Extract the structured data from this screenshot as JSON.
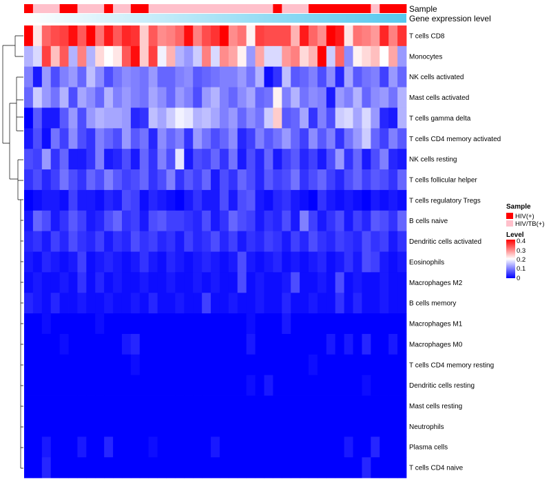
{
  "chart_data": {
    "type": "heatmap",
    "annotations": {
      "sample_label": "Sample",
      "gene_label": "Gene expression level",
      "sample_groups": [
        1,
        2,
        2,
        2,
        1,
        1,
        2,
        2,
        2,
        1,
        2,
        2,
        1,
        1,
        2,
        2,
        2,
        2,
        2,
        2,
        2,
        2,
        2,
        2,
        2,
        2,
        2,
        2,
        1,
        2,
        2,
        2,
        1,
        1,
        1,
        1,
        1,
        1,
        1,
        2,
        1,
        1,
        1
      ]
    },
    "rows": [
      "T cells CD8",
      "Monocytes",
      "NK cells activated",
      "Mast cells activated",
      "T cells gamma delta",
      "T cells CD4 memory activated",
      "NK cells resting",
      "T cells follicular helper",
      "T cells regulatory  Tregs",
      "B cells naive",
      "Dendritic cells activated",
      "Eosinophils",
      "Macrophages M2",
      "B cells memory",
      "Macrophages M1",
      "Macrophages M0",
      "T cells CD4 memory resting",
      "Dendritic cells resting",
      "Mast cells resting",
      "Neutrophils",
      "Plasma cells",
      "T cells CD4 naive"
    ],
    "values": [
      [
        0.4,
        0.22,
        0.32,
        0.34,
        0.35,
        0.39,
        0.33,
        0.4,
        0.31,
        0.38,
        0.33,
        0.37,
        0.36,
        0.24,
        0.33,
        0.29,
        0.3,
        0.32,
        0.39,
        0.3,
        0.34,
        0.36,
        0.4,
        0.29,
        0.31,
        0.21,
        0.35,
        0.34,
        0.34,
        0.34,
        0.26,
        0.38,
        0.32,
        0.29,
        0.4,
        0.38,
        0.22,
        0.31,
        0.3,
        0.28,
        0.37,
        0.3,
        0.36
      ],
      [
        0.14,
        0.17,
        0.35,
        0.25,
        0.33,
        0.14,
        0.3,
        0.14,
        0.23,
        0.2,
        0.22,
        0.33,
        0.39,
        0.24,
        0.35,
        0.19,
        0.26,
        0.14,
        0.12,
        0.16,
        0.3,
        0.17,
        0.29,
        0.27,
        0.21,
        0.12,
        0.27,
        0.17,
        0.17,
        0.28,
        0.3,
        0.23,
        0.26,
        0.4,
        0.16,
        0.32,
        0.11,
        0.21,
        0.23,
        0.25,
        0.2,
        0.27,
        0.12
      ],
      [
        0.1,
        0.02,
        0.12,
        0.06,
        0.1,
        0.12,
        0.08,
        0.15,
        0.11,
        0.06,
        0.09,
        0.11,
        0.1,
        0.09,
        0.12,
        0.08,
        0.08,
        0.1,
        0.11,
        0.07,
        0.08,
        0.09,
        0.1,
        0.1,
        0.12,
        0.09,
        0.14,
        0.01,
        0.04,
        0.15,
        0.07,
        0.08,
        0.1,
        0.06,
        0.11,
        0.03,
        0.13,
        0.07,
        0.09,
        0.1,
        0.05,
        0.12,
        0.08
      ],
      [
        0.08,
        0.16,
        0.12,
        0.09,
        0.14,
        0.06,
        0.13,
        0.11,
        0.08,
        0.14,
        0.1,
        0.12,
        0.1,
        0.09,
        0.13,
        0.11,
        0.08,
        0.12,
        0.1,
        0.06,
        0.12,
        0.14,
        0.1,
        0.08,
        0.11,
        0.13,
        0.08,
        0.09,
        0.21,
        0.1,
        0.14,
        0.09,
        0.11,
        0.1,
        0.02,
        0.12,
        0.1,
        0.14,
        0.08,
        0.11,
        0.12,
        0.09,
        0.14
      ],
      [
        0.0,
        0.07,
        0.02,
        0.02,
        0.07,
        0.12,
        0.06,
        0.12,
        0.14,
        0.13,
        0.13,
        0.12,
        0.03,
        0.04,
        0.15,
        0.13,
        0.16,
        0.19,
        0.18,
        0.14,
        0.15,
        0.13,
        0.1,
        0.12,
        0.08,
        0.11,
        0.09,
        0.16,
        0.24,
        0.07,
        0.08,
        0.13,
        0.04,
        0.1,
        0.06,
        0.16,
        0.17,
        0.13,
        0.17,
        0.12,
        0.03,
        0.02,
        0.14
      ],
      [
        0.02,
        0.06,
        0.01,
        0.09,
        0.05,
        0.11,
        0.06,
        0.04,
        0.1,
        0.08,
        0.06,
        0.12,
        0.07,
        0.09,
        0.03,
        0.11,
        0.08,
        0.1,
        0.04,
        0.12,
        0.09,
        0.06,
        0.08,
        0.11,
        0.03,
        0.05,
        0.1,
        0.07,
        0.09,
        0.12,
        0.08,
        0.05,
        0.11,
        0.07,
        0.1,
        0.04,
        0.09,
        0.12,
        0.16,
        0.08,
        0.05,
        0.1,
        0.07
      ],
      [
        0.06,
        0.05,
        0.12,
        0.04,
        0.08,
        0.02,
        0.02,
        0.04,
        0.1,
        0.02,
        0.03,
        0.06,
        0.02,
        0.08,
        0.04,
        0.1,
        0.06,
        0.18,
        0.02,
        0.06,
        0.05,
        0.08,
        0.04,
        0.09,
        0.02,
        0.06,
        0.03,
        0.08,
        0.02,
        0.05,
        0.07,
        0.03,
        0.05,
        0.02,
        0.06,
        0.12,
        0.04,
        0.08,
        0.02,
        0.06,
        0.1,
        0.03,
        0.02
      ],
      [
        0.04,
        0.06,
        0.03,
        0.05,
        0.09,
        0.06,
        0.04,
        0.08,
        0.06,
        0.1,
        0.07,
        0.05,
        0.06,
        0.08,
        0.04,
        0.06,
        0.1,
        0.04,
        0.07,
        0.05,
        0.08,
        0.02,
        0.06,
        0.04,
        0.08,
        0.06,
        0.03,
        0.07,
        0.05,
        0.06,
        0.09,
        0.04,
        0.06,
        0.08,
        0.05,
        0.03,
        0.06,
        0.08,
        0.05,
        0.07,
        0.06,
        0.04,
        0.08
      ],
      [
        0.0,
        0.01,
        0.02,
        0.02,
        0.01,
        0.05,
        0.02,
        0.02,
        0.01,
        0.03,
        0.02,
        0.06,
        0.05,
        0.01,
        0.03,
        0.02,
        0.01,
        0.0,
        0.02,
        0.04,
        0.02,
        0.02,
        0.06,
        0.02,
        0.06,
        0.07,
        0.02,
        0.01,
        0.03,
        0.04,
        0.02,
        0.01,
        0.0,
        0.04,
        0.02,
        0.01,
        0.02,
        0.01,
        0.0,
        0.02,
        0.01,
        0.02,
        0.01
      ],
      [
        0.02,
        0.08,
        0.06,
        0.02,
        0.04,
        0.07,
        0.05,
        0.02,
        0.03,
        0.06,
        0.08,
        0.04,
        0.05,
        0.02,
        0.06,
        0.07,
        0.05,
        0.05,
        0.04,
        0.03,
        0.06,
        0.02,
        0.04,
        0.08,
        0.06,
        0.05,
        0.02,
        0.04,
        0.03,
        0.06,
        0.02,
        0.1,
        0.05,
        0.02,
        0.04,
        0.06,
        0.02,
        0.05,
        0.03,
        0.07,
        0.06,
        0.04,
        0.08
      ],
      [
        0.03,
        0.04,
        0.02,
        0.05,
        0.03,
        0.06,
        0.04,
        0.03,
        0.05,
        0.02,
        0.04,
        0.03,
        0.06,
        0.04,
        0.05,
        0.03,
        0.04,
        0.02,
        0.05,
        0.03,
        0.04,
        0.06,
        0.03,
        0.05,
        0.02,
        0.04,
        0.03,
        0.05,
        0.04,
        0.02,
        0.05,
        0.03,
        0.06,
        0.04,
        0.03,
        0.05,
        0.04,
        0.03,
        0.06,
        0.04,
        0.05,
        0.02,
        0.04
      ],
      [
        0.02,
        0.01,
        0.03,
        0.02,
        0.01,
        0.02,
        0.05,
        0.01,
        0.02,
        0.03,
        0.02,
        0.01,
        0.02,
        0.04,
        0.02,
        0.01,
        0.03,
        0.02,
        0.01,
        0.02,
        0.03,
        0.02,
        0.01,
        0.02,
        0.06,
        0.02,
        0.01,
        0.02,
        0.03,
        0.01,
        0.02,
        0.01,
        0.02,
        0.03,
        0.01,
        0.02,
        0.04,
        0.02,
        0.06,
        0.05,
        0.02,
        0.01,
        0.02
      ],
      [
        0.01,
        0.02,
        0.01,
        0.01,
        0.02,
        0.01,
        0.04,
        0.01,
        0.03,
        0.01,
        0.02,
        0.01,
        0.01,
        0.02,
        0.01,
        0.01,
        0.02,
        0.01,
        0.01,
        0.02,
        0.01,
        0.02,
        0.01,
        0.01,
        0.06,
        0.01,
        0.02,
        0.01,
        0.01,
        0.02,
        0.06,
        0.01,
        0.01,
        0.02,
        0.01,
        0.06,
        0.01,
        0.02,
        0.01,
        0.01,
        0.02,
        0.01,
        0.01
      ],
      [
        0.03,
        0.02,
        0.01,
        0.03,
        0.01,
        0.01,
        0.02,
        0.01,
        0.01,
        0.02,
        0.01,
        0.01,
        0.02,
        0.01,
        0.03,
        0.01,
        0.01,
        0.02,
        0.01,
        0.01,
        0.05,
        0.01,
        0.01,
        0.02,
        0.01,
        0.01,
        0.02,
        0.01,
        0.01,
        0.03,
        0.01,
        0.01,
        0.02,
        0.01,
        0.01,
        0.04,
        0.01,
        0.03,
        0.01,
        0.01,
        0.02,
        0.01,
        0.01
      ],
      [
        0.0,
        0.0,
        0.01,
        0.0,
        0.0,
        0.0,
        0.0,
        0.0,
        0.01,
        0.0,
        0.0,
        0.0,
        0.0,
        0.0,
        0.0,
        0.0,
        0.0,
        0.0,
        0.0,
        0.0,
        0.0,
        0.0,
        0.0,
        0.0,
        0.0,
        0.01,
        0.0,
        0.0,
        0.0,
        0.02,
        0.0,
        0.0,
        0.0,
        0.0,
        0.0,
        0.0,
        0.0,
        0.0,
        0.0,
        0.0,
        0.0,
        0.0,
        0.0
      ],
      [
        0.0,
        0.0,
        0.0,
        0.0,
        0.01,
        0.0,
        0.0,
        0.0,
        0.0,
        0.0,
        0.0,
        0.02,
        0.03,
        0.0,
        0.0,
        0.0,
        0.0,
        0.0,
        0.0,
        0.0,
        0.0,
        0.0,
        0.0,
        0.0,
        0.0,
        0.02,
        0.0,
        0.0,
        0.0,
        0.0,
        0.0,
        0.0,
        0.0,
        0.0,
        0.02,
        0.0,
        0.02,
        0.0,
        0.03,
        0.0,
        0.0,
        0.02,
        0.0
      ],
      [
        0.0,
        0.0,
        0.0,
        0.0,
        0.0,
        0.0,
        0.0,
        0.0,
        0.0,
        0.0,
        0.0,
        0.0,
        0.01,
        0.0,
        0.0,
        0.0,
        0.0,
        0.0,
        0.0,
        0.0,
        0.0,
        0.0,
        0.0,
        0.0,
        0.0,
        0.0,
        0.0,
        0.0,
        0.0,
        0.0,
        0.0,
        0.0,
        0.01,
        0.0,
        0.0,
        0.0,
        0.0,
        0.0,
        0.0,
        0.0,
        0.0,
        0.0,
        0.0
      ],
      [
        0.0,
        0.0,
        0.0,
        0.0,
        0.0,
        0.0,
        0.0,
        0.0,
        0.0,
        0.0,
        0.0,
        0.0,
        0.0,
        0.0,
        0.0,
        0.0,
        0.0,
        0.0,
        0.0,
        0.0,
        0.0,
        0.0,
        0.0,
        0.0,
        0.0,
        0.01,
        0.0,
        0.02,
        0.0,
        0.0,
        0.0,
        0.0,
        0.0,
        0.0,
        0.0,
        0.0,
        0.0,
        0.0,
        0.01,
        0.0,
        0.0,
        0.0,
        0.0
      ],
      [
        0.0,
        0.0,
        0.0,
        0.0,
        0.0,
        0.0,
        0.0,
        0.0,
        0.0,
        0.0,
        0.0,
        0.0,
        0.0,
        0.0,
        0.0,
        0.0,
        0.0,
        0.0,
        0.0,
        0.0,
        0.0,
        0.0,
        0.0,
        0.0,
        0.0,
        0.0,
        0.0,
        0.0,
        0.0,
        0.0,
        0.0,
        0.0,
        0.0,
        0.0,
        0.0,
        0.0,
        0.0,
        0.0,
        0.0,
        0.0,
        0.0,
        0.0,
        0.0
      ],
      [
        0.0,
        0.0,
        0.0,
        0.0,
        0.0,
        0.0,
        0.0,
        0.0,
        0.0,
        0.0,
        0.0,
        0.0,
        0.0,
        0.0,
        0.0,
        0.0,
        0.0,
        0.0,
        0.0,
        0.0,
        0.0,
        0.0,
        0.0,
        0.0,
        0.0,
        0.0,
        0.0,
        0.0,
        0.0,
        0.0,
        0.0,
        0.0,
        0.0,
        0.0,
        0.0,
        0.0,
        0.0,
        0.0,
        0.0,
        0.0,
        0.0,
        0.0,
        0.0
      ],
      [
        0.0,
        0.0,
        0.02,
        0.0,
        0.0,
        0.0,
        0.02,
        0.0,
        0.0,
        0.03,
        0.0,
        0.0,
        0.0,
        0.0,
        0.01,
        0.0,
        0.0,
        0.0,
        0.0,
        0.0,
        0.0,
        0.02,
        0.0,
        0.0,
        0.0,
        0.0,
        0.0,
        0.0,
        0.0,
        0.0,
        0.0,
        0.0,
        0.0,
        0.0,
        0.0,
        0.0,
        0.02,
        0.0,
        0.0,
        0.03,
        0.0,
        0.0,
        0.0
      ],
      [
        0.0,
        0.0,
        0.03,
        0.0,
        0.0,
        0.0,
        0.0,
        0.0,
        0.0,
        0.0,
        0.0,
        0.0,
        0.0,
        0.0,
        0.0,
        0.0,
        0.0,
        0.0,
        0.0,
        0.0,
        0.0,
        0.0,
        0.0,
        0.0,
        0.0,
        0.0,
        0.0,
        0.0,
        0.0,
        0.0,
        0.0,
        0.0,
        0.0,
        0.0,
        0.0,
        0.0,
        0.0,
        0.0,
        0.03,
        0.0,
        0.0,
        0.0,
        0.0
      ]
    ],
    "scale": {
      "min": 0,
      "mid": 0.2,
      "max": 0.4,
      "low_color": "#0000ff",
      "mid_color": "#ffffff",
      "high_color": "#ff0000"
    },
    "legend": {
      "sample_title": "Sample",
      "sample_items": [
        {
          "label": "HIV(+)",
          "color": "#ff0000"
        },
        {
          "label": "HIV/TB(+)",
          "color": "#ffc0cb"
        }
      ],
      "level_title": "Level",
      "level_ticks": [
        "0.4",
        "0.3",
        "0.2",
        "0.1",
        "0"
      ]
    }
  }
}
